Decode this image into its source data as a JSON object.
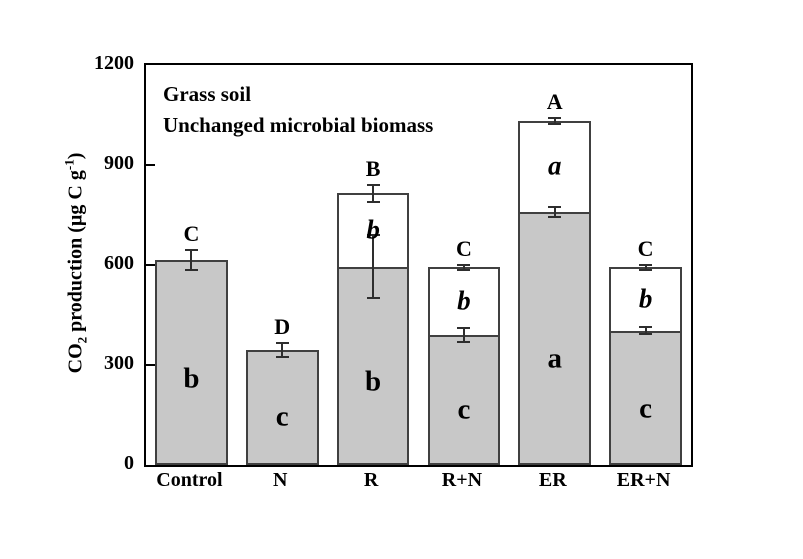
{
  "chart_data": {
    "type": "bar",
    "subtype": "stacked",
    "annotations": [
      "Grass soil",
      "Unchanged microbial biomass"
    ],
    "ylabel": "CO₂ production (µg C g⁻¹)",
    "ylabel_parts": {
      "prefix": "CO",
      "sub": "2",
      "mid": " production (µg C g",
      "sup": "-1",
      "suffix": ")"
    },
    "xlabel": "",
    "ylim": [
      0,
      1200
    ],
    "yticks": [
      0,
      300,
      600,
      900,
      1200
    ],
    "grid": false,
    "legend": false,
    "bar_width_fraction": 0.8,
    "colors": {
      "gray_segment": "#c8c8c8",
      "white_segment": "#ffffff",
      "bar_border": "#404040",
      "error_bar": "#2e2e2e",
      "axis": "#000000"
    },
    "categories": [
      "Control",
      "N",
      "R",
      "R+N",
      "ER",
      "ER+N"
    ],
    "series": [
      {
        "name": "gray bottom segment",
        "values": [
          615,
          345,
          595,
          390,
          760,
          403
        ]
      },
      {
        "name": "white top segment",
        "values": [
          0,
          0,
          220,
          203,
          272,
          190
        ]
      }
    ],
    "bars": [
      {
        "category": "Control",
        "gray_value": 615,
        "gray_error": 30,
        "total_value": 615,
        "total_error": null,
        "gray_label": "b",
        "white_label": null,
        "top_label": "C"
      },
      {
        "category": "N",
        "gray_value": 345,
        "gray_error": 22,
        "total_value": 345,
        "total_error": null,
        "gray_label": "c",
        "white_label": null,
        "top_label": "D"
      },
      {
        "category": "R",
        "gray_value": 595,
        "gray_error": 95,
        "total_value": 815,
        "total_error": 25,
        "gray_label": "b",
        "white_label": "b",
        "top_label": "B"
      },
      {
        "category": "R+N",
        "gray_value": 390,
        "gray_error": 22,
        "total_value": 593,
        "total_error": 8,
        "gray_label": "c",
        "white_label": "b",
        "top_label": "C"
      },
      {
        "category": "ER",
        "gray_value": 760,
        "gray_error": 15,
        "total_value": 1032,
        "total_error": 10,
        "gray_label": "a",
        "white_label": "a",
        "top_label": "A"
      },
      {
        "category": "ER+N",
        "gray_value": 403,
        "gray_error": 10,
        "total_value": 593,
        "total_error": 8,
        "gray_label": "c",
        "white_label": "b",
        "top_label": "C"
      }
    ]
  }
}
